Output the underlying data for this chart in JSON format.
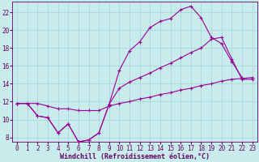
{
  "bg_color": "#c8ecec",
  "grid_color": "#a8d8d8",
  "line_color": "#990099",
  "font_color": "#660066",
  "xlabel": "Windchill (Refroidissement éolien,°C)",
  "xlim": [
    -0.5,
    23.5
  ],
  "ylim": [
    7.5,
    23.2
  ],
  "xticks": [
    0,
    1,
    2,
    3,
    4,
    5,
    6,
    7,
    8,
    9,
    10,
    11,
    12,
    13,
    14,
    15,
    16,
    17,
    18,
    19,
    20,
    21,
    22,
    23
  ],
  "yticks": [
    8,
    10,
    12,
    14,
    16,
    18,
    20,
    22
  ],
  "curve1_x": [
    0,
    1,
    2,
    3,
    4,
    5,
    6,
    7,
    8,
    9,
    10,
    11,
    12,
    13,
    14,
    15,
    16,
    17,
    18,
    19,
    20,
    21,
    22
  ],
  "curve1_y": [
    11.8,
    11.8,
    10.4,
    10.2,
    8.5,
    9.5,
    7.5,
    7.7,
    8.5,
    11.7,
    15.5,
    17.7,
    18.7,
    20.3,
    21.0,
    21.3,
    22.3,
    22.7,
    21.4,
    19.2,
    18.5,
    16.5,
    14.7
  ],
  "curve2_x": [
    0,
    1,
    2,
    3,
    4,
    5,
    6,
    7,
    8,
    9,
    10,
    11,
    12,
    13,
    14,
    15,
    16,
    17,
    18,
    19,
    20,
    21,
    22,
    23
  ],
  "curve2_y": [
    11.8,
    11.8,
    10.4,
    10.2,
    8.5,
    9.5,
    7.5,
    7.7,
    8.5,
    11.7,
    13.5,
    14.2,
    14.7,
    15.2,
    15.8,
    16.3,
    16.9,
    17.5,
    18.0,
    19.0,
    19.2,
    16.8,
    14.5,
    14.5
  ],
  "curve3_x": [
    0,
    1,
    2,
    3,
    4,
    5,
    6,
    7,
    8,
    9,
    10,
    11,
    12,
    13,
    14,
    15,
    16,
    17,
    18,
    19,
    20,
    21,
    22,
    23
  ],
  "curve3_y": [
    11.8,
    11.8,
    11.8,
    11.5,
    11.2,
    11.2,
    11.0,
    11.0,
    11.0,
    11.5,
    11.8,
    12.0,
    12.3,
    12.5,
    12.8,
    13.0,
    13.3,
    13.5,
    13.8,
    14.0,
    14.3,
    14.5,
    14.6,
    14.7
  ],
  "font_size": 5.5,
  "xlabel_size": 6.0,
  "lw": 0.8,
  "ms": 3.0,
  "mew": 0.8
}
